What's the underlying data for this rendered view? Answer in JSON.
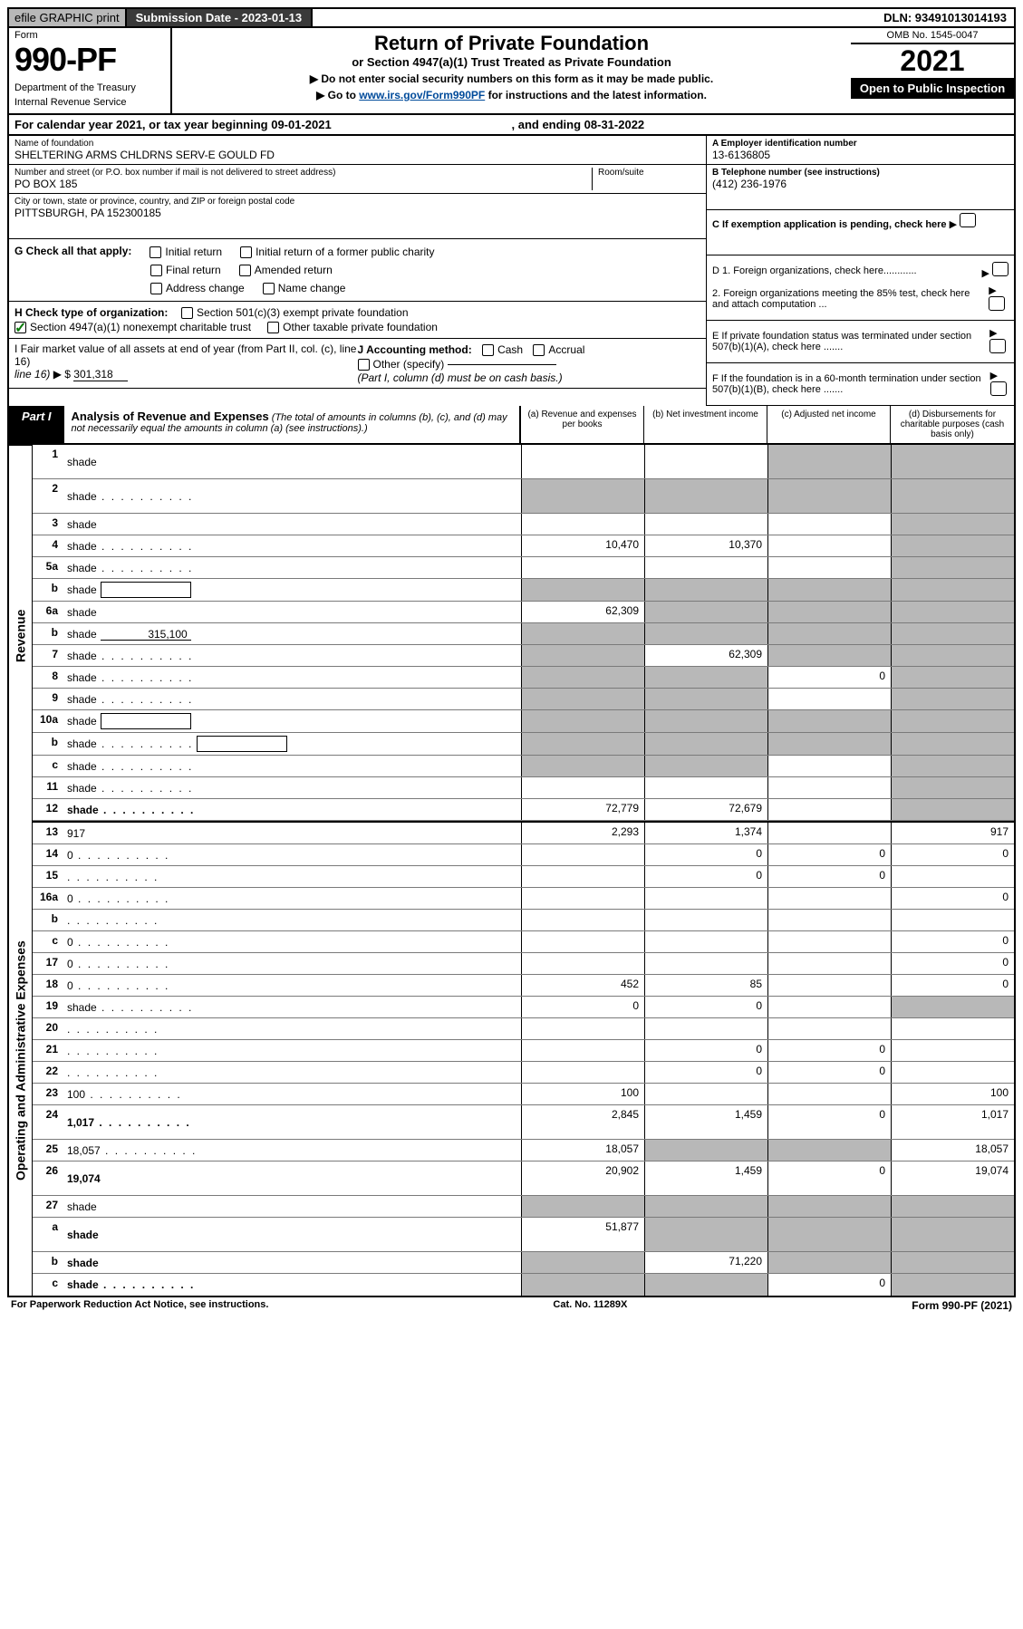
{
  "top": {
    "efile": "efile GRAPHIC print",
    "submission": "Submission Date - 2023-01-13",
    "dln": "DLN: 93491013014193"
  },
  "header": {
    "form_word": "Form",
    "form_number": "990-PF",
    "dept1": "Department of the Treasury",
    "dept2": "Internal Revenue Service",
    "title": "Return of Private Foundation",
    "subtitle": "or Section 4947(a)(1) Trust Treated as Private Foundation",
    "instr1": "▶ Do not enter social security numbers on this form as it may be made public.",
    "instr2_pre": "▶ Go to ",
    "instr2_link": "www.irs.gov/Form990PF",
    "instr2_post": " for instructions and the latest information.",
    "omb": "OMB No. 1545-0047",
    "year": "2021",
    "open": "Open to Public Inspection"
  },
  "calyear": {
    "left": "For calendar year 2021, or tax year beginning 09-01-2021",
    "right": ", and ending 08-31-2022"
  },
  "info": {
    "name_lbl": "Name of foundation",
    "name": "SHELTERING ARMS CHLDRNS SERV-E GOULD FD",
    "addr_lbl": "Number and street (or P.O. box number if mail is not delivered to street address)",
    "addr": "PO BOX 185",
    "room_lbl": "Room/suite",
    "city_lbl": "City or town, state or province, country, and ZIP or foreign postal code",
    "city": "PITTSBURGH, PA  152300185",
    "a_lbl": "A Employer identification number",
    "a_val": "13-6136805",
    "b_lbl": "B Telephone number (see instructions)",
    "b_val": "(412) 236-1976",
    "c_lbl": "C If exemption application is pending, check here"
  },
  "g": {
    "label": "G Check all that apply:",
    "opts": [
      "Initial return",
      "Initial return of a former public charity",
      "Final return",
      "Amended return",
      "Address change",
      "Name change"
    ]
  },
  "h": {
    "label": "H Check type of organization:",
    "opt1": "Section 501(c)(3) exempt private foundation",
    "opt2": "Section 4947(a)(1) nonexempt charitable trust",
    "opt3": "Other taxable private foundation"
  },
  "i": {
    "label": "I Fair market value of all assets at end of year (from Part II, col. (c), line 16)",
    "val_pre": "▶ $",
    "val": "301,318",
    "j_label": "J Accounting method:",
    "j_cash": "Cash",
    "j_accrual": "Accrual",
    "j_other": "Other (specify)",
    "j_note": "(Part I, column (d) must be on cash basis.)"
  },
  "right_d": {
    "d1": "D 1. Foreign organizations, check here............",
    "d2": "2. Foreign organizations meeting the 85% test, check here and attach computation ...",
    "e": "E  If private foundation status was terminated under section 507(b)(1)(A), check here .......",
    "f": "F  If the foundation is in a 60-month termination under section 507(b)(1)(B), check here .......",
    "arrow": "▶"
  },
  "part": {
    "tab": "Part I",
    "title": "Analysis of Revenue and Expenses",
    "note": "(The total of amounts in columns (b), (c), and (d) may not necessarily equal the amounts in column (a) (see instructions).)",
    "col_a": "(a)   Revenue and expenses per books",
    "col_b": "(b)   Net investment income",
    "col_c": "(c)   Adjusted net income",
    "col_d": "(d)   Disbursements for charitable purposes (cash basis only)"
  },
  "side": {
    "revenue": "Revenue",
    "expenses": "Operating and Administrative Expenses"
  },
  "rows": [
    {
      "n": "1",
      "d": "shade",
      "tall": true,
      "a": "",
      "b": "",
      "c": "shade"
    },
    {
      "n": "2",
      "d": "shade",
      "tall": true,
      "a": "shade",
      "b": "shade",
      "c": "shade",
      "dots": true
    },
    {
      "n": "3",
      "d": "shade",
      "a": "",
      "b": "",
      "c": ""
    },
    {
      "n": "4",
      "d": "shade",
      "a": "10,470",
      "b": "10,370",
      "c": "",
      "dots": true
    },
    {
      "n": "5a",
      "d": "shade",
      "a": "",
      "b": "",
      "c": "",
      "dots": true
    },
    {
      "n": "b",
      "d": "shade",
      "a": "shade",
      "b": "shade",
      "c": "shade",
      "box": true
    },
    {
      "n": "6a",
      "d": "shade",
      "a": "62,309",
      "b": "shade",
      "c": "shade"
    },
    {
      "n": "b",
      "d": "shade",
      "a": "shade",
      "b": "shade",
      "c": "shade",
      "line": "315,100"
    },
    {
      "n": "7",
      "d": "shade",
      "a": "shade",
      "b": "62,309",
      "c": "shade",
      "dots": true
    },
    {
      "n": "8",
      "d": "shade",
      "a": "shade",
      "b": "shade",
      "c": "0",
      "dots": true
    },
    {
      "n": "9",
      "d": "shade",
      "a": "shade",
      "b": "shade",
      "c": "",
      "dots": true
    },
    {
      "n": "10a",
      "d": "shade",
      "a": "shade",
      "b": "shade",
      "c": "shade",
      "box": true
    },
    {
      "n": "b",
      "d": "shade",
      "a": "shade",
      "b": "shade",
      "c": "shade",
      "box": true,
      "dots": true
    },
    {
      "n": "c",
      "d": "shade",
      "a": "shade",
      "b": "shade",
      "c": "",
      "dots": true
    },
    {
      "n": "11",
      "d": "shade",
      "a": "",
      "b": "",
      "c": "",
      "dots": true
    },
    {
      "n": "12",
      "d": "shade",
      "a": "72,779",
      "b": "72,679",
      "c": "",
      "bold": true,
      "dots": true
    }
  ],
  "rows2": [
    {
      "n": "13",
      "d": "917",
      "a": "2,293",
      "b": "1,374",
      "c": ""
    },
    {
      "n": "14",
      "d": "0",
      "a": "",
      "b": "0",
      "c": "0",
      "dots": true
    },
    {
      "n": "15",
      "d": "",
      "a": "",
      "b": "0",
      "c": "0",
      "dots": true
    },
    {
      "n": "16a",
      "d": "0",
      "a": "",
      "b": "",
      "c": "",
      "dots": true
    },
    {
      "n": "b",
      "d": "",
      "a": "",
      "b": "",
      "c": "",
      "dots": true
    },
    {
      "n": "c",
      "d": "0",
      "a": "",
      "b": "",
      "c": "",
      "dots": true
    },
    {
      "n": "17",
      "d": "0",
      "a": "",
      "b": "",
      "c": "",
      "dots": true
    },
    {
      "n": "18",
      "d": "0",
      "a": "452",
      "b": "85",
      "c": "",
      "dots": true
    },
    {
      "n": "19",
      "d": "shade",
      "a": "0",
      "b": "0",
      "c": "",
      "dots": true
    },
    {
      "n": "20",
      "d": "",
      "a": "",
      "b": "",
      "c": "",
      "dots": true
    },
    {
      "n": "21",
      "d": "",
      "a": "",
      "b": "0",
      "c": "0",
      "dots": true
    },
    {
      "n": "22",
      "d": "",
      "a": "",
      "b": "0",
      "c": "0",
      "dots": true
    },
    {
      "n": "23",
      "d": "100",
      "a": "100",
      "b": "",
      "c": "",
      "dots": true
    },
    {
      "n": "24",
      "d": "1,017",
      "a": "2,845",
      "b": "1,459",
      "c": "0",
      "bold": true,
      "tall": true,
      "dots": true
    },
    {
      "n": "25",
      "d": "18,057",
      "a": "18,057",
      "b": "shade",
      "c": "shade",
      "dots": true
    },
    {
      "n": "26",
      "d": "19,074",
      "a": "20,902",
      "b": "1,459",
      "c": "0",
      "bold": true,
      "tall": true
    },
    {
      "n": "27",
      "d": "shade",
      "a": "shade",
      "b": "shade",
      "c": "shade"
    },
    {
      "n": "a",
      "d": "shade",
      "a": "51,877",
      "b": "shade",
      "c": "shade",
      "bold": true,
      "tall": true
    },
    {
      "n": "b",
      "d": "shade",
      "a": "shade",
      "b": "71,220",
      "c": "shade",
      "bold": true
    },
    {
      "n": "c",
      "d": "shade",
      "a": "shade",
      "b": "shade",
      "c": "0",
      "bold": true,
      "dots": true
    }
  ],
  "footer": {
    "left": "For Paperwork Reduction Act Notice, see instructions.",
    "mid": "Cat. No. 11289X",
    "right": "Form 990-PF (2021)"
  }
}
